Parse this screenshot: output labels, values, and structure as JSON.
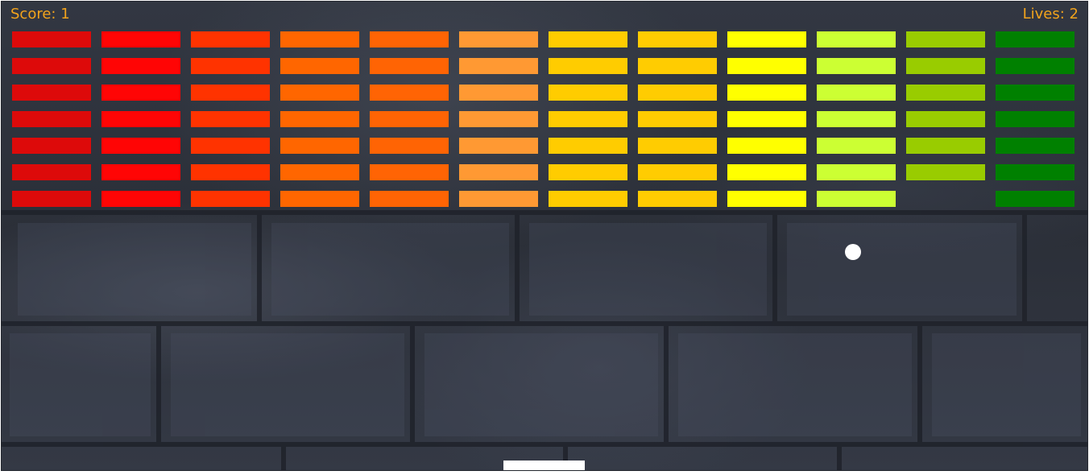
{
  "hud": {
    "score_text": "Score: 1",
    "lives_text": "Lives: 2",
    "text_color": "#f2a31c"
  },
  "game": {
    "columns": 12,
    "rows": 7,
    "column_colors": [
      "#dd0a0a",
      "#ff0505",
      "#ff3300",
      "#ff6600",
      "#ff6404",
      "#ff9933",
      "#ffcc00",
      "#ffcc01",
      "#ffff00",
      "#ccff33",
      "#99cc00",
      "#008000"
    ],
    "destroyed_bricks": [
      {
        "row": 6,
        "column": 10
      }
    ],
    "ball_color": "#ffffff",
    "paddle_color": "#ffffff",
    "background": "dark stone wall"
  }
}
